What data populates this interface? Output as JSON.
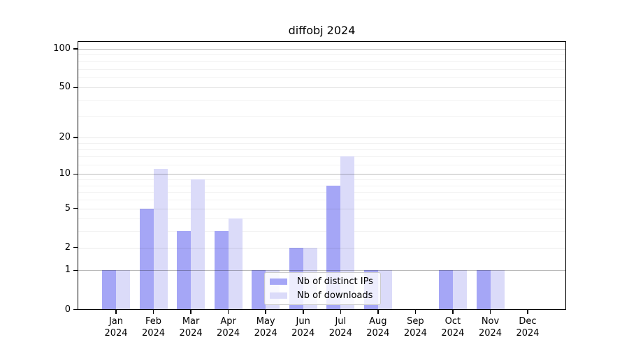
{
  "title": "diffobj 2024",
  "axes": {
    "y_tick_labels": [
      "0",
      "1",
      "2",
      "5",
      "10",
      "20",
      "50",
      "100"
    ],
    "x_months": [
      "Jan",
      "Feb",
      "Mar",
      "Apr",
      "May",
      "Jun",
      "Jul",
      "Aug",
      "Sep",
      "Oct",
      "Nov",
      "Dec"
    ],
    "x_year": "2024"
  },
  "legend": {
    "items": [
      {
        "label": "Nb of distinct IPs",
        "color": "#a5a6f6"
      },
      {
        "label": "Nb of downloads",
        "color": "#dbdbf9"
      }
    ]
  },
  "colors": {
    "bar_distinct_ips": "#a5a6f6",
    "bar_downloads": "#dbdbf9",
    "grid_major": "rgba(0,0,0,0.27)",
    "grid_mid": "rgba(0,0,0,0.09)",
    "grid_minor": "rgba(0,0,0,0.05)",
    "frame": "#000000",
    "background": "#ffffff"
  },
  "chart_data": {
    "type": "bar",
    "title": "diffobj 2024",
    "categories": [
      "Jan 2024",
      "Feb 2024",
      "Mar 2024",
      "Apr 2024",
      "May 2024",
      "Jun 2024",
      "Jul 2024",
      "Aug 2024",
      "Sep 2024",
      "Oct 2024",
      "Nov 2024",
      "Dec 2024"
    ],
    "series": [
      {
        "name": "Nb of distinct IPs",
        "color": "#a5a6f6",
        "values": [
          1,
          5,
          3,
          3,
          1,
          2,
          8,
          1,
          0,
          1,
          1,
          0
        ]
      },
      {
        "name": "Nb of downloads",
        "color": "#dbdbf9",
        "values": [
          1,
          11,
          9,
          4,
          1,
          2,
          14,
          1,
          0,
          1,
          1,
          0
        ]
      }
    ],
    "xlabel": "",
    "ylabel": "",
    "yscale": "log1p",
    "ytick_values": [
      0,
      1,
      2,
      5,
      10,
      20,
      50,
      100
    ],
    "ytick_minor_values": [
      3,
      4,
      6,
      7,
      8,
      9,
      12,
      14,
      16,
      18,
      30,
      40,
      60,
      70,
      80,
      90
    ],
    "ylim": [
      0,
      115
    ],
    "grid": true,
    "legend_position": "lower center"
  }
}
